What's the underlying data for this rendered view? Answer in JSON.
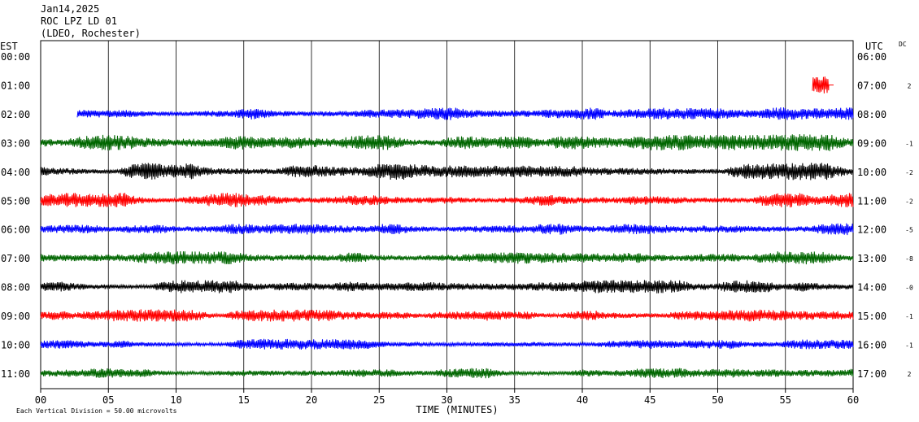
{
  "header": {
    "date": "Jan14,2025",
    "station": "ROC LPZ LD 01",
    "network": "(LDEO, Rochester)"
  },
  "left_axis_label": "EST",
  "right_axis_label": "UTC",
  "dc_label": "DC",
  "footer_note": "Each Vertical Division =   50.00 microvolts",
  "chart_data": {
    "type": "line",
    "title": "",
    "xlabel": "TIME (MINUTES)",
    "ylabel": "",
    "xlim": [
      0,
      60
    ],
    "x_ticks": [
      "00",
      "05",
      "10",
      "15",
      "20",
      "25",
      "30",
      "35",
      "40",
      "45",
      "50",
      "55",
      "60"
    ],
    "grid": "vertical lines every 5 minutes",
    "rows": [
      {
        "est": "00:00",
        "utc": "06:00",
        "dc": "",
        "color": "#0000ff",
        "start_min": null,
        "amplitude": 0
      },
      {
        "est": "01:00",
        "utc": "07:00",
        "dc": "2",
        "color": "#ff0000",
        "start_min": 57,
        "end_min": 58.2,
        "amplitude": 15
      },
      {
        "est": "02:00",
        "utc": "08:00",
        "dc": "",
        "color": "#0000ff",
        "start_min": 2.7,
        "amplitude": 8
      },
      {
        "est": "03:00",
        "utc": "09:00",
        "dc": "-1",
        "color": "#006600",
        "start_min": 0,
        "amplitude": 10
      },
      {
        "est": "04:00",
        "utc": "10:00",
        "dc": "-2",
        "color": "#000000",
        "start_min": 0,
        "amplitude": 10
      },
      {
        "est": "05:00",
        "utc": "11:00",
        "dc": "-2",
        "color": "#ff0000",
        "start_min": 0,
        "amplitude": 9
      },
      {
        "est": "06:00",
        "utc": "12:00",
        "dc": "-5",
        "color": "#0000ff",
        "start_min": 0,
        "amplitude": 7
      },
      {
        "est": "07:00",
        "utc": "13:00",
        "dc": "-8",
        "color": "#006600",
        "start_min": 0,
        "amplitude": 8
      },
      {
        "est": "08:00",
        "utc": "14:00",
        "dc": "-0",
        "color": "#000000",
        "start_min": 0,
        "amplitude": 8
      },
      {
        "est": "09:00",
        "utc": "15:00",
        "dc": "-1",
        "color": "#ff0000",
        "start_min": 0,
        "amplitude": 7
      },
      {
        "est": "10:00",
        "utc": "16:00",
        "dc": "-1",
        "color": "#0000ff",
        "start_min": 0,
        "amplitude": 7
      },
      {
        "est": "11:00",
        "utc": "17:00",
        "dc": "2",
        "color": "#006600",
        "start_min": 0,
        "amplitude": 6
      }
    ]
  }
}
